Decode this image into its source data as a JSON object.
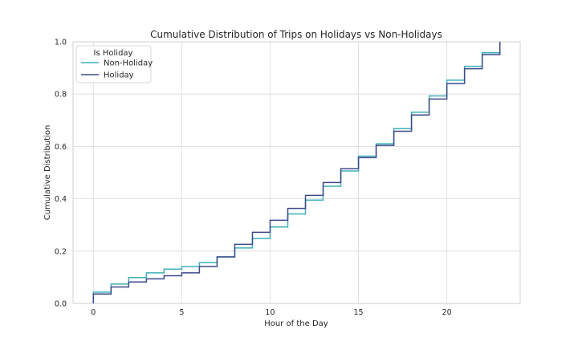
{
  "chart_data": {
    "type": "line",
    "title": "Cumulative Distribution of Trips on Holidays vs Non-Holidays",
    "xlabel": "Hour of the Day",
    "ylabel": "Cumulative Distribution",
    "xlim": [
      -1.15,
      24.15
    ],
    "ylim": [
      0,
      1
    ],
    "xticks": [
      0,
      5,
      10,
      15,
      20
    ],
    "yticks": [
      0.0,
      0.2,
      0.4,
      0.6,
      0.8,
      1.0
    ],
    "ytick_labels": [
      "0.0",
      "0.2",
      "0.4",
      "0.6",
      "0.8",
      "1.0"
    ],
    "grid": true,
    "step": "post",
    "legend": {
      "title": "Is Holiday",
      "placement": "top-left"
    },
    "x": [
      0,
      1,
      2,
      3,
      4,
      5,
      6,
      7,
      8,
      9,
      10,
      11,
      12,
      13,
      14,
      15,
      16,
      17,
      18,
      19,
      20,
      21,
      22,
      23
    ],
    "series": [
      {
        "name": "Non-Holiday",
        "color": "#3fb0b8",
        "values": [
          0.043,
          0.074,
          0.099,
          0.117,
          0.131,
          0.141,
          0.156,
          0.178,
          0.212,
          0.248,
          0.292,
          0.342,
          0.395,
          0.448,
          0.506,
          0.563,
          0.61,
          0.668,
          0.731,
          0.793,
          0.853,
          0.906,
          0.958,
          1.0
        ]
      },
      {
        "name": "Holiday",
        "color": "#3d4a8a",
        "values": [
          0.036,
          0.063,
          0.082,
          0.094,
          0.106,
          0.117,
          0.141,
          0.178,
          0.226,
          0.272,
          0.318,
          0.363,
          0.413,
          0.462,
          0.515,
          0.557,
          0.604,
          0.658,
          0.72,
          0.781,
          0.84,
          0.897,
          0.951,
          1.0
        ]
      }
    ]
  }
}
